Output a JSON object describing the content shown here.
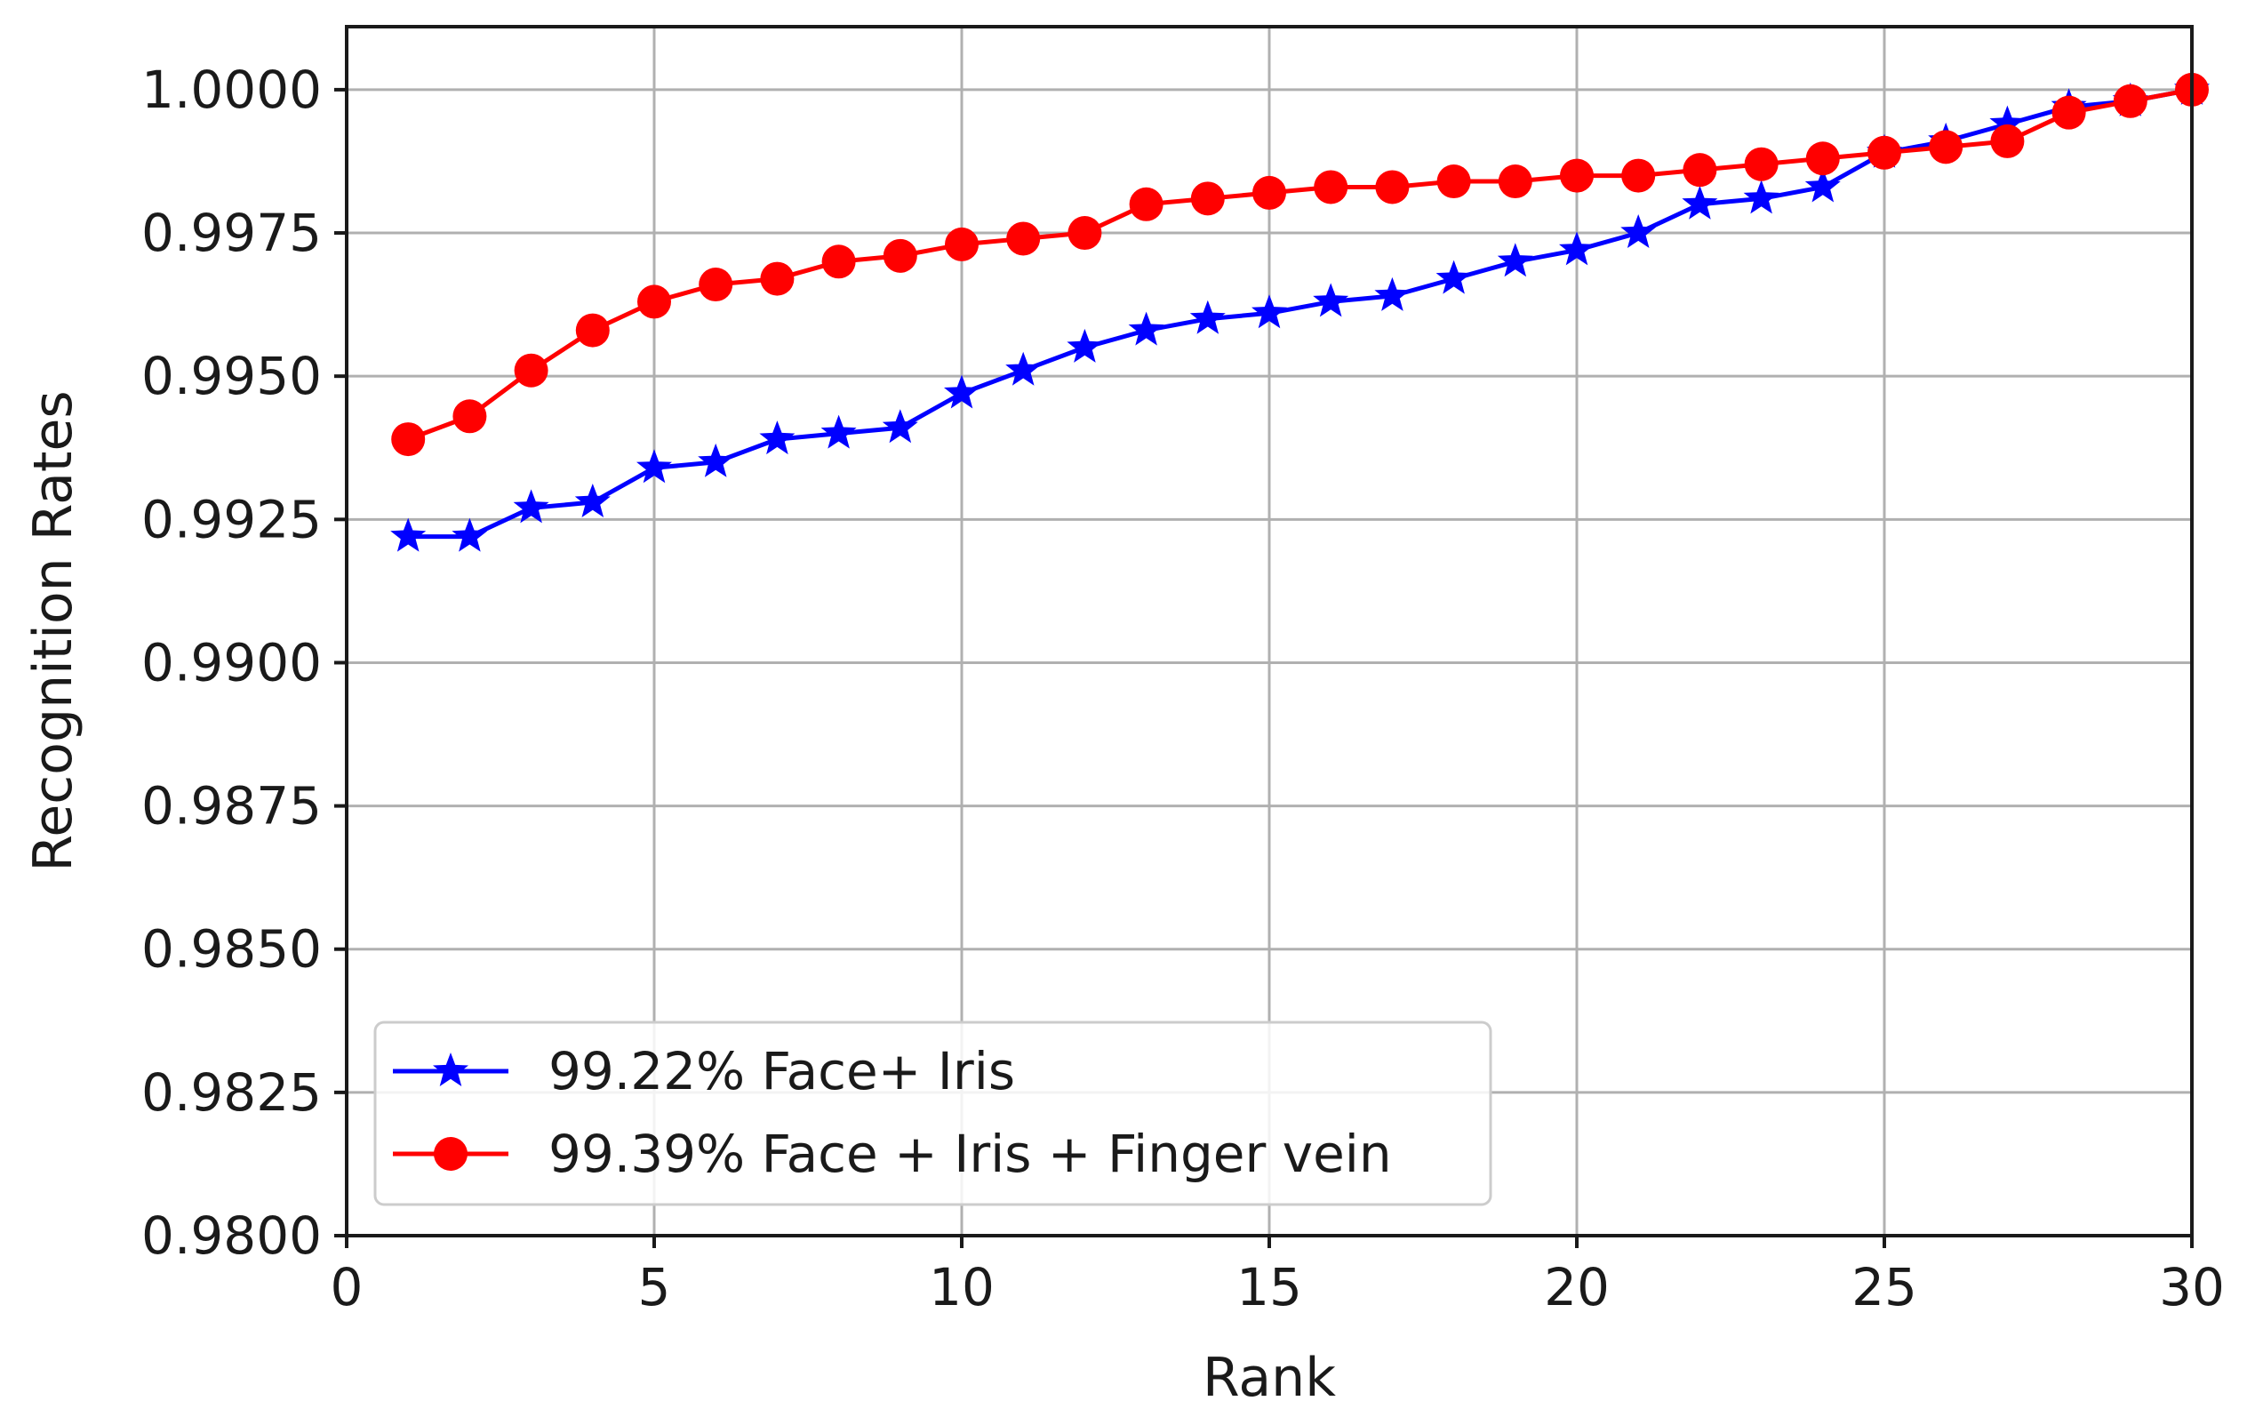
{
  "chart_data": {
    "type": "line",
    "title": "",
    "xlabel": "Rank",
    "ylabel": "Recognition Rates",
    "xlim": [
      0,
      30
    ],
    "ylim": [
      0.98,
      1.0011
    ],
    "xticks": [
      0,
      5,
      10,
      15,
      20,
      25,
      30
    ],
    "xtick_labels": [
      "0",
      "5",
      "10",
      "15",
      "20",
      "25",
      "30"
    ],
    "yticks": [
      0.98,
      0.9825,
      0.985,
      0.9875,
      0.99,
      0.9925,
      0.995,
      0.9975,
      1.0
    ],
    "ytick_labels": [
      "0.9800",
      "0.9825",
      "0.9850",
      "0.9875",
      "0.9900",
      "0.9925",
      "0.9950",
      "0.9975",
      "1.0000"
    ],
    "grid": true,
    "legend_position": "lower-left",
    "x": [
      1,
      2,
      3,
      4,
      5,
      6,
      7,
      8,
      9,
      10,
      11,
      12,
      13,
      14,
      15,
      16,
      17,
      18,
      19,
      20,
      21,
      22,
      23,
      24,
      25,
      26,
      27,
      28,
      29,
      30
    ],
    "series": [
      {
        "name": "99.22% Face+ Iris",
        "color": "#0000ff",
        "marker": "star",
        "values": [
          0.9922,
          0.9922,
          0.9927,
          0.9928,
          0.9934,
          0.9935,
          0.9939,
          0.994,
          0.9941,
          0.9947,
          0.9951,
          0.9955,
          0.9958,
          0.996,
          0.9961,
          0.9963,
          0.9964,
          0.9967,
          0.997,
          0.9972,
          0.9975,
          0.998,
          0.9981,
          0.9983,
          0.9989,
          0.9991,
          0.9994,
          0.9997,
          0.9998,
          1.0
        ]
      },
      {
        "name": "99.39% Face + Iris + Finger vein",
        "color": "#ff0000",
        "marker": "circle",
        "values": [
          0.9939,
          0.9943,
          0.9951,
          0.9958,
          0.9963,
          0.9966,
          0.9967,
          0.997,
          0.9971,
          0.9973,
          0.9974,
          0.9975,
          0.998,
          0.9981,
          0.9982,
          0.9983,
          0.9983,
          0.9984,
          0.9984,
          0.9985,
          0.9985,
          0.9986,
          0.9987,
          0.9988,
          0.9989,
          0.999,
          0.9991,
          0.9996,
          0.9998,
          1.0
        ]
      }
    ]
  }
}
